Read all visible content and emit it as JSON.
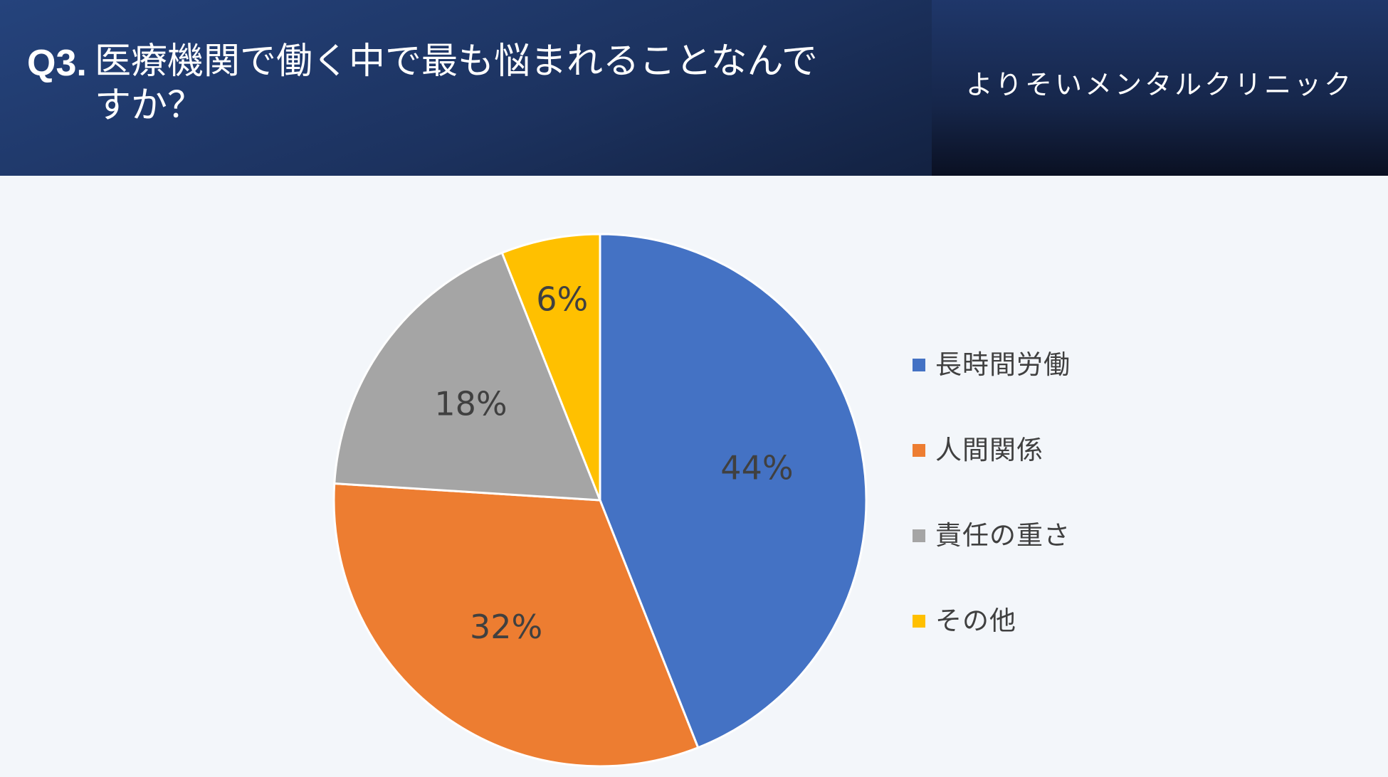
{
  "header": {
    "question_number": "Q3.",
    "question_text": "医療機関で働く中で最も悩まれることなんですか？",
    "clinic_name": "よりそいメンタルクリニック"
  },
  "chart_data": {
    "type": "pie",
    "title": "",
    "categories": [
      "長時間労働",
      "人間関係",
      "責任の重さ",
      "その他"
    ],
    "values": [
      44,
      32,
      18,
      6
    ],
    "labels": [
      "44%",
      "32%",
      "18%",
      "6%"
    ],
    "colors": [
      "#4472c4",
      "#ed7d31",
      "#a5a5a5",
      "#ffc000"
    ],
    "legend_position": "right",
    "start": "12 o'clock",
    "direction": "clockwise"
  }
}
